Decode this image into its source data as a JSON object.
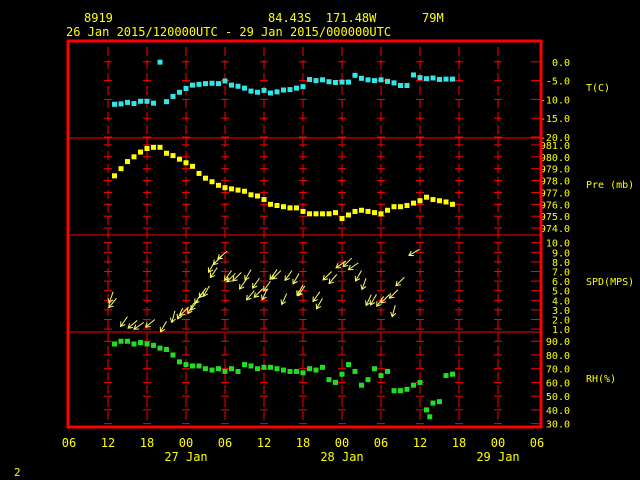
{
  "header": {
    "station_id": "8919",
    "location": "84.43S  171.48W",
    "elevation": "79M",
    "time_range": "26 Jan 2015/120000UTC - 29 Jan 2015/000000UTC"
  },
  "footer": {
    "page_number": "2"
  },
  "colors": {
    "background": "#000000",
    "frame": "#ff0000",
    "grid": "#ff0000",
    "text": "#ffff00",
    "temperature": "#33e6e6",
    "pressure": "#ffff00",
    "wind": "#ffff66",
    "humidity": "#22dd22"
  },
  "chart_data": {
    "type": "scatter",
    "x_axis": {
      "unit": "hours since 26 Jan 06 UTC",
      "range": [
        0,
        72
      ],
      "tick_labels": [
        "06",
        "12",
        "18",
        "00",
        "06",
        "12",
        "18",
        "00",
        "06",
        "12",
        "18",
        "00",
        "06"
      ],
      "day_labels": [
        "27 Jan",
        "28 Jan",
        "29 Jan"
      ]
    },
    "panels": [
      {
        "name": "temperature",
        "label": "T(C)",
        "ylim": [
          -20,
          5
        ],
        "tick_labels": [
          "0.0",
          "-5.0",
          "-10.0",
          "-15.0",
          "-20.0"
        ],
        "tick_values": [
          0,
          -5,
          -10,
          -15,
          -20
        ],
        "points": [
          [
            7,
            -11.3
          ],
          [
            8,
            -11.2
          ],
          [
            9,
            -10.8
          ],
          [
            10,
            -11.1
          ],
          [
            11,
            -10.5
          ],
          [
            12,
            -10.5
          ],
          [
            13,
            -11.0
          ],
          [
            14,
            -0.1
          ],
          [
            15,
            -10.6
          ],
          [
            16,
            -9.2
          ],
          [
            17,
            -8.1
          ],
          [
            18,
            -7.1
          ],
          [
            19,
            -6.2
          ],
          [
            20,
            -6.0
          ],
          [
            21,
            -5.8
          ],
          [
            22,
            -5.7
          ],
          [
            23,
            -5.8
          ],
          [
            24,
            -5.1
          ],
          [
            25,
            -6.2
          ],
          [
            26,
            -6.5
          ],
          [
            27,
            -7.0
          ],
          [
            28,
            -7.8
          ],
          [
            29,
            -8.1
          ],
          [
            30,
            -7.6
          ],
          [
            31,
            -8.3
          ],
          [
            32,
            -8.0
          ],
          [
            33,
            -7.5
          ],
          [
            34,
            -7.4
          ],
          [
            35,
            -7.0
          ],
          [
            36,
            -6.6
          ],
          [
            37,
            -4.7
          ],
          [
            38,
            -5.0
          ],
          [
            39,
            -4.8
          ],
          [
            40,
            -5.3
          ],
          [
            41,
            -5.5
          ],
          [
            42,
            -5.4
          ],
          [
            43,
            -5.4
          ],
          [
            44,
            -3.6
          ],
          [
            45,
            -4.4
          ],
          [
            46,
            -4.8
          ],
          [
            47,
            -5.0
          ],
          [
            48,
            -4.8
          ],
          [
            49,
            -5.2
          ],
          [
            50,
            -5.6
          ],
          [
            51,
            -6.3
          ],
          [
            52,
            -6.3
          ],
          [
            53,
            -3.5
          ],
          [
            54,
            -4.2
          ],
          [
            55,
            -4.5
          ],
          [
            56,
            -4.3
          ],
          [
            57,
            -4.7
          ],
          [
            58,
            -4.6
          ],
          [
            59,
            -4.6
          ]
        ]
      },
      {
        "name": "pressure",
        "label": "Pre (mb)",
        "ylim": [
          973.5,
          981.5
        ],
        "tick_labels": [
          "981.0",
          "980.0",
          "979.0",
          "978.0",
          "977.0",
          "976.0",
          "975.0",
          "974.0"
        ],
        "tick_values": [
          981,
          980,
          979,
          978,
          977,
          976,
          975,
          974
        ],
        "points": [
          [
            7,
            978.4
          ],
          [
            8,
            979.0
          ],
          [
            9,
            979.6
          ],
          [
            10,
            980.0
          ],
          [
            11,
            980.4
          ],
          [
            12,
            980.7
          ],
          [
            13,
            980.8
          ],
          [
            14,
            980.8
          ],
          [
            15,
            980.3
          ],
          [
            16,
            980.1
          ],
          [
            17,
            979.8
          ],
          [
            18,
            979.5
          ],
          [
            19,
            979.2
          ],
          [
            20,
            978.6
          ],
          [
            21,
            978.2
          ],
          [
            22,
            977.9
          ],
          [
            23,
            977.6
          ],
          [
            24,
            977.4
          ],
          [
            25,
            977.3
          ],
          [
            26,
            977.2
          ],
          [
            27,
            977.1
          ],
          [
            28,
            976.8
          ],
          [
            29,
            976.7
          ],
          [
            30,
            976.4
          ],
          [
            31,
            976.0
          ],
          [
            32,
            975.9
          ],
          [
            33,
            975.8
          ],
          [
            34,
            975.7
          ],
          [
            35,
            975.7
          ],
          [
            36,
            975.4
          ],
          [
            37,
            975.2
          ],
          [
            38,
            975.2
          ],
          [
            39,
            975.2
          ],
          [
            40,
            975.2
          ],
          [
            41,
            975.3
          ],
          [
            42,
            974.8
          ],
          [
            43,
            975.1
          ],
          [
            44,
            975.4
          ],
          [
            45,
            975.5
          ],
          [
            46,
            975.4
          ],
          [
            47,
            975.3
          ],
          [
            48,
            975.2
          ],
          [
            49,
            975.5
          ],
          [
            50,
            975.8
          ],
          [
            51,
            975.8
          ],
          [
            52,
            975.9
          ],
          [
            53,
            976.1
          ],
          [
            54,
            976.3
          ],
          [
            55,
            976.6
          ],
          [
            56,
            976.4
          ],
          [
            57,
            976.3
          ],
          [
            58,
            976.2
          ],
          [
            59,
            976.0
          ]
        ]
      },
      {
        "name": "wind",
        "label": "SPD(MPS)",
        "ylim": [
          0.8,
          10.7
        ],
        "tick_labels": [
          "10.0",
          "9.0",
          "8.0",
          "7.0",
          "6.0",
          "5.0",
          "4.0",
          "3.0",
          "2.0",
          "1.0"
        ],
        "tick_values": [
          10,
          9,
          8,
          7,
          6,
          5,
          4,
          3,
          2,
          1
        ],
        "points": [
          [
            6.8,
            4.9,
            200
          ],
          [
            7.3,
            4.2,
            220
          ],
          [
            9.0,
            2.3,
            215
          ],
          [
            10.5,
            1.9,
            230
          ],
          [
            11.5,
            1.7,
            235
          ],
          [
            13.2,
            2.0,
            230
          ],
          [
            15.0,
            1.8,
            210
          ],
          [
            16.3,
            2.9,
            195
          ],
          [
            17.5,
            3.2,
            205
          ],
          [
            18.4,
            3.3,
            225
          ],
          [
            19.2,
            3.7,
            210
          ],
          [
            19.8,
            4.0,
            215
          ],
          [
            20.4,
            4.7,
            215
          ],
          [
            21.1,
            5.3,
            215
          ],
          [
            21.6,
            5.5,
            210
          ],
          [
            22.4,
            8.0,
            210
          ],
          [
            22.8,
            7.4,
            215
          ],
          [
            23.5,
            8.6,
            225
          ],
          [
            24.3,
            9.1,
            230
          ],
          [
            25.0,
            7.1,
            215
          ],
          [
            25.6,
            6.8,
            225
          ],
          [
            26.5,
            6.9,
            225
          ],
          [
            27.3,
            6.2,
            215
          ],
          [
            28.0,
            7.2,
            210
          ],
          [
            28.5,
            5.0,
            220
          ],
          [
            29.3,
            6.3,
            215
          ],
          [
            29.8,
            5.2,
            225
          ],
          [
            30.5,
            5.2,
            205
          ],
          [
            31.0,
            6.0,
            215
          ],
          [
            32.0,
            7.2,
            215
          ],
          [
            32.6,
            7.1,
            225
          ],
          [
            33.5,
            4.7,
            205
          ],
          [
            34.3,
            7.1,
            215
          ],
          [
            35.4,
            6.8,
            210
          ],
          [
            36.0,
            5.6,
            210
          ],
          [
            36.3,
            5.5,
            215
          ],
          [
            38.6,
            4.9,
            215
          ],
          [
            39.0,
            4.2,
            210
          ],
          [
            40.4,
            7.0,
            225
          ],
          [
            41.2,
            6.7,
            220
          ],
          [
            42.6,
            8.1,
            235
          ],
          [
            43.5,
            8.4,
            225
          ],
          [
            44.5,
            7.9,
            235
          ],
          [
            45.0,
            7.1,
            210
          ],
          [
            45.7,
            6.3,
            200
          ],
          [
            46.5,
            4.6,
            205
          ],
          [
            47.3,
            4.6,
            210
          ],
          [
            48.4,
            4.4,
            215
          ],
          [
            49.3,
            4.6,
            225
          ],
          [
            50.2,
            3.5,
            195
          ],
          [
            50.6,
            5.1,
            225
          ],
          [
            51.6,
            6.4,
            225
          ],
          [
            53.9,
            9.3,
            240
          ]
        ]
      },
      {
        "name": "humidity",
        "label": "RH(%)",
        "ylim": [
          29,
          96
        ],
        "tick_labels": [
          "90.0",
          "80.0",
          "70.0",
          "60.0",
          "50.0",
          "40.0",
          "30.0"
        ],
        "tick_values": [
          90,
          80,
          70,
          60,
          50,
          40,
          30
        ],
        "points": [
          [
            7,
            88
          ],
          [
            8,
            90
          ],
          [
            9,
            90
          ],
          [
            10,
            88
          ],
          [
            11,
            89
          ],
          [
            12,
            88
          ],
          [
            13,
            87
          ],
          [
            14,
            85
          ],
          [
            15,
            84
          ],
          [
            16,
            80
          ],
          [
            17,
            75
          ],
          [
            18,
            73
          ],
          [
            19,
            72
          ],
          [
            20,
            72
          ],
          [
            21,
            70
          ],
          [
            22,
            69
          ],
          [
            23,
            70
          ],
          [
            24,
            68
          ],
          [
            25,
            70
          ],
          [
            26,
            68
          ],
          [
            27,
            73
          ],
          [
            28,
            72
          ],
          [
            29,
            70
          ],
          [
            30,
            71
          ],
          [
            31,
            71
          ],
          [
            32,
            70
          ],
          [
            33,
            69
          ],
          [
            34,
            68
          ],
          [
            35,
            68
          ],
          [
            36,
            67
          ],
          [
            37,
            70
          ],
          [
            38,
            69
          ],
          [
            39,
            71
          ],
          [
            40,
            62
          ],
          [
            41,
            60
          ],
          [
            42,
            66
          ],
          [
            43,
            73
          ],
          [
            44,
            68
          ],
          [
            45,
            58
          ],
          [
            46,
            62
          ],
          [
            47,
            70
          ],
          [
            48,
            65
          ],
          [
            49,
            68
          ],
          [
            50,
            54
          ],
          [
            51,
            54
          ],
          [
            52,
            55
          ],
          [
            53,
            58
          ],
          [
            54,
            60
          ],
          [
            55,
            40
          ],
          [
            55.5,
            35
          ],
          [
            56,
            45
          ],
          [
            57,
            46
          ],
          [
            58,
            65
          ],
          [
            59,
            66
          ]
        ]
      }
    ]
  }
}
